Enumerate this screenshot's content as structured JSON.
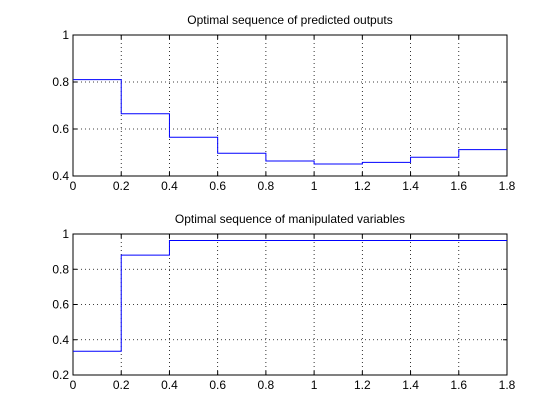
{
  "figure": {
    "background": "#ffffff",
    "series_color": "#0000ff"
  },
  "chart_data": [
    {
      "type": "line",
      "step": true,
      "title": "Optimal sequence of predicted outputs",
      "xlabel": "",
      "ylabel": "",
      "xlim": [
        0,
        1.8
      ],
      "ylim": [
        0.4,
        1
      ],
      "grid": true,
      "xticks": [
        0,
        0.2,
        0.4,
        0.6,
        0.8,
        1,
        1.2,
        1.4,
        1.6,
        1.8
      ],
      "xtick_labels": [
        "0",
        "0.2",
        "0.4",
        "0.6",
        "0.8",
        "1",
        "1.2",
        "1.4",
        "1.6",
        "1.8"
      ],
      "yticks": [
        0.4,
        0.6,
        0.8,
        1
      ],
      "ytick_labels": [
        "0.4",
        "0.6",
        "0.8",
        "1"
      ],
      "x": [
        0,
        0.2,
        0.4,
        0.6,
        0.8,
        1.0,
        1.2,
        1.4,
        1.6,
        1.8
      ],
      "values": [
        0.81,
        0.665,
        0.565,
        0.497,
        0.464,
        0.451,
        0.458,
        0.48,
        0.512,
        0.512
      ]
    },
    {
      "type": "line",
      "step": true,
      "title": "Optimal sequence of manipulated variables",
      "xlabel": "",
      "ylabel": "",
      "xlim": [
        0,
        1.8
      ],
      "ylim": [
        0.2,
        1
      ],
      "grid": true,
      "xticks": [
        0,
        0.2,
        0.4,
        0.6,
        0.8,
        1,
        1.2,
        1.4,
        1.6,
        1.8
      ],
      "xtick_labels": [
        "0",
        "0.2",
        "0.4",
        "0.6",
        "0.8",
        "1",
        "1.2",
        "1.4",
        "1.6",
        "1.8"
      ],
      "yticks": [
        0.2,
        0.4,
        0.6,
        0.8,
        1
      ],
      "ytick_labels": [
        "0.2",
        "0.4",
        "0.6",
        "0.8",
        "1"
      ],
      "x": [
        0,
        0.2,
        0.4,
        0.6,
        0.8,
        1.0,
        1.2,
        1.4,
        1.6,
        1.8
      ],
      "values": [
        0.335,
        0.88,
        0.963,
        0.963,
        0.963,
        0.963,
        0.963,
        0.963,
        0.963,
        0.963
      ]
    }
  ]
}
